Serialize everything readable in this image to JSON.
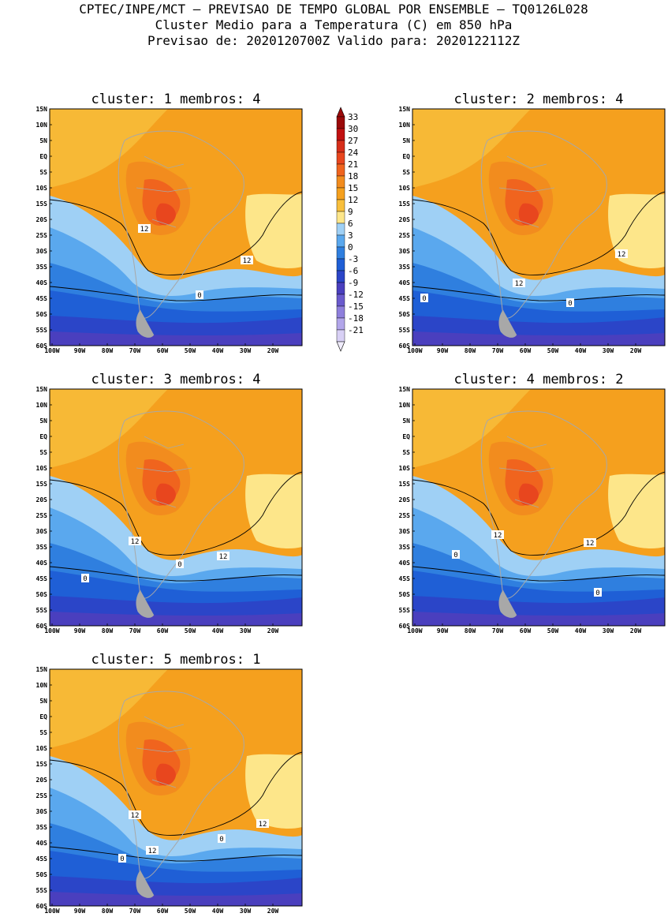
{
  "header": {
    "line1": "CPTEC/INPE/MCT — PREVISAO DE TEMPO GLOBAL POR ENSEMBLE — TQ0126L028",
    "line2": "Cluster Medio para a Temperatura (C) em 850 hPa",
    "line3": "Previsao de: 2020120700Z    Valido para: 2020122112Z"
  },
  "axes": {
    "lat_labels": [
      "15N",
      "10N",
      "5N",
      "EQ",
      "5S",
      "10S",
      "15S",
      "20S",
      "25S",
      "30S",
      "35S",
      "40S",
      "45S",
      "50S",
      "55S",
      "60S"
    ],
    "lon_labels": [
      "100W",
      "90W",
      "80W",
      "70W",
      "60W",
      "50W",
      "40W",
      "30W",
      "20W"
    ]
  },
  "colorbar": {
    "levels": [
      "33",
      "30",
      "27",
      "24",
      "21",
      "18",
      "15",
      "12",
      "9",
      "6",
      "3",
      "0",
      "-3",
      "-6",
      "-9",
      "-12",
      "-15",
      "-18",
      "-21"
    ],
    "colors": [
      "#9b0a0a",
      "#c01010",
      "#d62e1a",
      "#e8461e",
      "#f0641e",
      "#f28c1e",
      "#f5a01e",
      "#f8bf3c",
      "#fde68a",
      "#9fd0f5",
      "#5aa8ee",
      "#2f7fdf",
      "#1f5fd6",
      "#2b45c8",
      "#4a3fbe",
      "#6a5acd",
      "#8e7fdc",
      "#b2a6ea",
      "#d8d0f5"
    ]
  },
  "panels": [
    {
      "title": "cluster: 1   membros: 4",
      "contour_labels": [
        "12",
        "12",
        "0"
      ]
    },
    {
      "title": "cluster: 2   membros: 4",
      "contour_labels": [
        "12",
        "12",
        "0",
        "0"
      ]
    },
    {
      "title": "cluster: 3   membros: 4",
      "contour_labels": [
        "12",
        "12",
        "0",
        "0"
      ]
    },
    {
      "title": "cluster: 4   membros: 2",
      "contour_labels": [
        "12",
        "12",
        "0",
        "0"
      ]
    },
    {
      "title": "cluster: 5   membros: 1",
      "contour_labels": [
        "12",
        "12",
        "12",
        "0",
        "0"
      ]
    }
  ]
}
